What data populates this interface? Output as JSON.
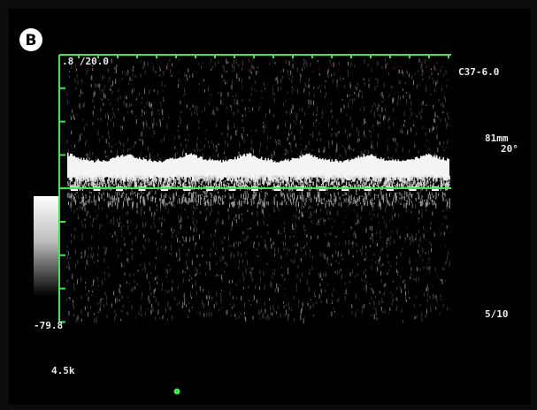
{
  "panel_label": "B",
  "overlay": {
    "top_scale": ".8 /20.0",
    "probe": "C37-6.0",
    "depth": "81mm",
    "angle": "20°",
    "gain": "5/10",
    "bottom_scale": "-79.8",
    "prf": "4.5k"
  }
}
